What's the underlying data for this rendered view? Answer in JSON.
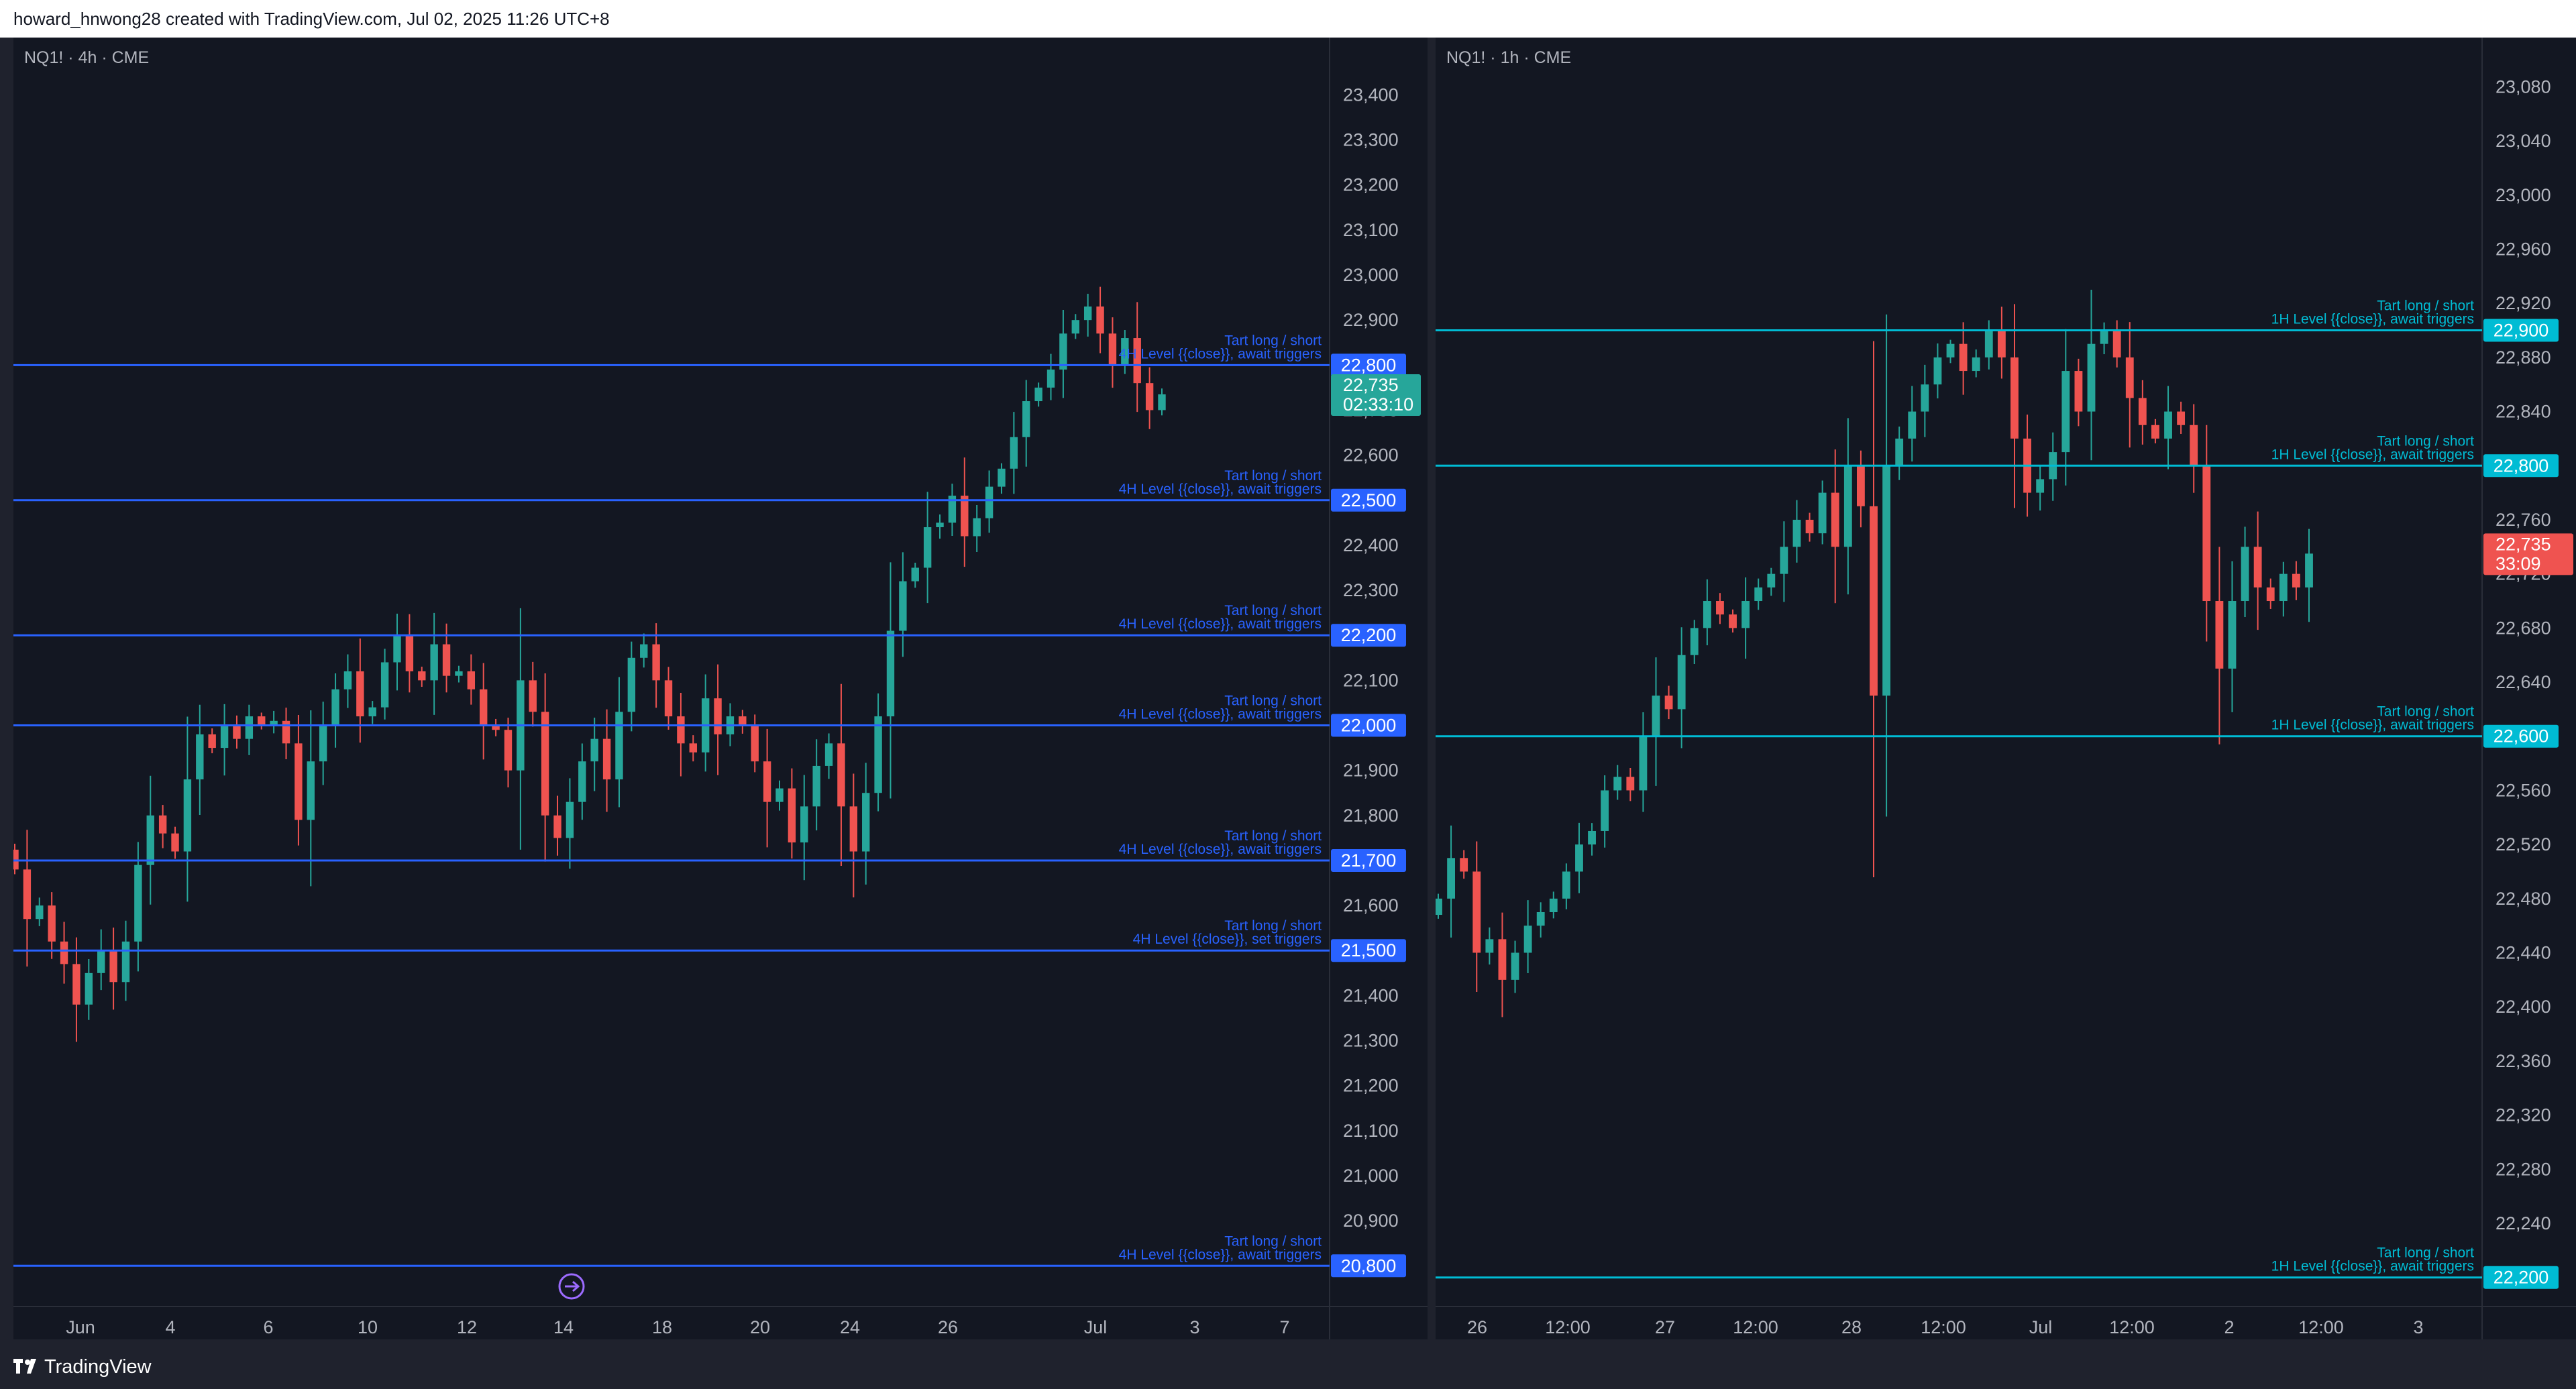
{
  "header": {
    "title": "howard_hnwong28 created with TradingView.com, Jul 02, 2025 11:26 UTC+8"
  },
  "footer": {
    "brand": "TradingView"
  },
  "colors": {
    "up": "#26a69a",
    "down": "#ef5350",
    "level_left": "#2962ff",
    "level_right": "#00bcd4",
    "background": "#131722"
  },
  "chart_data": [
    {
      "type": "candlestick",
      "symbol": "NQ1! · 4h · CME",
      "ylim": [
        20720,
        23490
      ],
      "y_ticks": [
        20900,
        21000,
        21100,
        21200,
        21300,
        21400,
        21500,
        21600,
        21700,
        21800,
        21900,
        22000,
        22100,
        22200,
        22300,
        22400,
        22500,
        22600,
        22700,
        22800,
        22900,
        23000,
        23100,
        23200,
        23300,
        23400
      ],
      "x_ticks": [
        "Jun",
        "4",
        "6",
        "10",
        "12",
        "14",
        "18",
        "20",
        "24",
        "26",
        "Jul",
        "3",
        "7"
      ],
      "last_price": {
        "value": 22735,
        "label": "22,735",
        "countdown": "02:33:10"
      },
      "levels": [
        {
          "price": 22800,
          "label": "22,800",
          "line1": "Tart long / short",
          "line2": "4H Level {{close}}, await triggers"
        },
        {
          "price": 22500,
          "label": "22,500",
          "line1": "Tart long / short",
          "line2": "4H Level {{close}}, await triggers"
        },
        {
          "price": 22200,
          "label": "22,200",
          "line1": "Tart long / short",
          "line2": "4H Level {{close}}, await triggers"
        },
        {
          "price": 22000,
          "label": "22,000",
          "line1": "Tart long / short",
          "line2": "4H Level {{close}}, await triggers"
        },
        {
          "price": 21700,
          "label": "21,700",
          "line1": "Tart long / short",
          "line2": "4H Level {{close}}, await triggers"
        },
        {
          "price": 21500,
          "label": "21,500",
          "line1": "Tart long / short",
          "line2": "4H Level {{close}}, set triggers"
        },
        {
          "price": 20800,
          "label": "20,800",
          "line1": "Tart long / short",
          "line2": "4H Level {{close}}, await triggers"
        }
      ],
      "closes": [
        21680,
        21570,
        21600,
        21520,
        21470,
        21380,
        21450,
        21500,
        21430,
        21520,
        21690,
        21800,
        21760,
        21720,
        21880,
        21980,
        21950,
        22000,
        21970,
        22020,
        22000,
        22010,
        21960,
        21790,
        21920,
        22000,
        22080,
        22120,
        22020,
        22040,
        22140,
        22200,
        22120,
        22100,
        22180,
        22110,
        22120,
        22080,
        22000,
        21990,
        21900,
        22100,
        22030,
        21800,
        21750,
        21830,
        21920,
        21970,
        21880,
        22030,
        22150,
        22180,
        22100,
        22020,
        21960,
        21940,
        22060,
        21980,
        22020,
        22000,
        21920,
        21830,
        21860,
        21740,
        21820,
        21910,
        21960,
        21820,
        21720,
        21850,
        22020,
        22210,
        22320,
        22350,
        22440,
        22450,
        22510,
        22420,
        22460,
        22530,
        22570,
        22640,
        22720,
        22750,
        22790,
        22870,
        22900,
        22930,
        22870,
        22800,
        22860,
        22760,
        22700,
        22735
      ]
    },
    {
      "type": "candlestick",
      "symbol": "NQ1! · 1h · CME",
      "ylim": [
        22182,
        23104
      ],
      "y_ticks": [
        22200,
        22240,
        22280,
        22320,
        22360,
        22400,
        22440,
        22480,
        22520,
        22560,
        22600,
        22640,
        22680,
        22720,
        22760,
        22800,
        22840,
        22880,
        22920,
        22960,
        23000,
        23040,
        23080
      ],
      "x_ticks": [
        "26",
        "12:00",
        "27",
        "12:00",
        "28",
        "12:00",
        "Jul",
        "12:00",
        "2",
        "12:00",
        "3"
      ],
      "last_price": {
        "value": 22735,
        "label": "22,735",
        "countdown": "33:09"
      },
      "levels": [
        {
          "price": 22900,
          "label": "22,900",
          "line1": "Tart long / short",
          "line2": "1H Level {{close}}, await triggers"
        },
        {
          "price": 22800,
          "label": "22,800",
          "line1": "Tart long / short",
          "line2": "1H Level {{close}}, await triggers"
        },
        {
          "price": 22600,
          "label": "22,600",
          "line1": "Tart long / short",
          "line2": "1H Level {{close}}, await triggers"
        },
        {
          "price": 22200,
          "label": "22,200",
          "line1": "Tart long / short",
          "line2": "1H Level {{close}}, await triggers"
        }
      ],
      "closes": [
        22480,
        22510,
        22500,
        22440,
        22450,
        22420,
        22440,
        22460,
        22470,
        22480,
        22500,
        22520,
        22530,
        22560,
        22570,
        22560,
        22600,
        22630,
        22620,
        22660,
        22680,
        22700,
        22690,
        22680,
        22700,
        22710,
        22720,
        22740,
        22760,
        22750,
        22780,
        22740,
        22800,
        22770,
        22630,
        22800,
        22820,
        22840,
        22860,
        22880,
        22890,
        22870,
        22880,
        22900,
        22880,
        22820,
        22780,
        22790,
        22810,
        22870,
        22840,
        22890,
        22900,
        22880,
        22850,
        22830,
        22820,
        22840,
        22830,
        22800,
        22700,
        22650,
        22700,
        22740,
        22710,
        22700,
        22720,
        22710,
        22735
      ]
    }
  ]
}
